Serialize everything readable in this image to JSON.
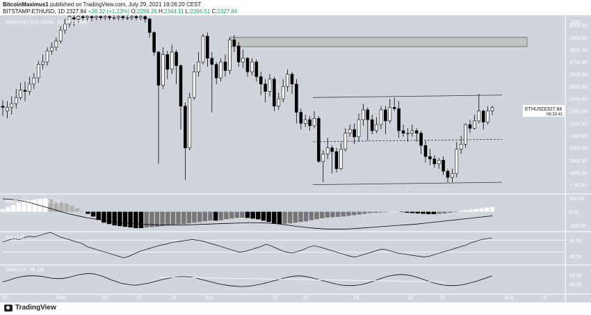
{
  "header": {
    "author": "BitcoinMaximus1",
    "published_text": "published on TradingView.com, July 29, 2021 19:26:20 CEST",
    "symbol": "BITSTAMP:ETHUSD, 1D",
    "price": "2327.84",
    "change": "+28.32 (+1.23%)",
    "o_label": "O:",
    "o_value": "2299.26",
    "h_label": "H:",
    "h_value": "2344.11",
    "l_label": "L:",
    "l_value": "2266.51",
    "c_label": "C:",
    "c_value": "2327.84"
  },
  "main_legend": "Ethereum / U.S. Dollar, 1D, BITSTAMP",
  "macd_legend": "MACD (21, 50, close, 24)",
  "rsi_legend": "RSI (14)",
  "stoch_legend": "Stoch (14, 28, 14)",
  "price_tag": {
    "symbol": "ETHUSD",
    "price": "2327.84",
    "countdown": "06:33:41"
  },
  "footer": {
    "brand": "TradingView"
  },
  "colors": {
    "background": "#d1d4dc",
    "panel_divider": "#ffffff",
    "bull": "#ffffff",
    "bear": "#000000",
    "zone": "#bdbdbd"
  },
  "chart_data": [
    {
      "type": "candlestick",
      "name": "Ethereum / U.S. Dollar, 1D",
      "y_axis_unit": "USD",
      "y_ticks": [
        3000,
        2900,
        2800,
        2700,
        2600,
        2500,
        2400,
        2300,
        2200,
        2100,
        2000,
        1900,
        1800,
        1700
      ],
      "ylim": [
        1630,
        3080
      ],
      "x_ticks": [
        "19",
        "May",
        "10",
        "17",
        "24",
        "Jun",
        "14",
        "21",
        "Jul",
        "12",
        "19",
        "Aug",
        "9"
      ],
      "candles": [
        [
          2340,
          2330,
          2390,
          2260
        ],
        [
          2300,
          2330,
          2380,
          2240
        ],
        [
          2330,
          2360,
          2420,
          2270
        ],
        [
          2360,
          2410,
          2480,
          2320
        ],
        [
          2410,
          2470,
          2530,
          2390
        ],
        [
          2470,
          2460,
          2540,
          2380
        ],
        [
          2460,
          2520,
          2580,
          2430
        ],
        [
          2520,
          2570,
          2610,
          2480
        ],
        [
          2570,
          2680,
          2710,
          2530
        ],
        [
          2680,
          2700,
          2760,
          2640
        ],
        [
          2700,
          2790,
          2820,
          2670
        ],
        [
          2790,
          2820,
          2860,
          2760
        ],
        [
          2820,
          2870,
          2900,
          2790
        ],
        [
          2870,
          2960,
          2990,
          2850
        ],
        [
          2960,
          3010,
          3050,
          2930
        ],
        [
          3010,
          3070,
          3100,
          2980
        ],
        [
          3060,
          3050,
          3080,
          2990
        ],
        [
          3050,
          3070,
          3100,
          3020
        ],
        [
          3070,
          3060,
          3100,
          3030
        ],
        [
          3060,
          3070,
          3100,
          3030
        ],
        [
          3070,
          3060,
          3100,
          3030
        ],
        [
          3060,
          3070,
          3100,
          3040
        ],
        [
          3070,
          3060,
          3100,
          3040
        ],
        [
          3060,
          3070,
          3100,
          3040
        ],
        [
          3070,
          3060,
          3100,
          3040
        ],
        [
          3060,
          3060,
          3100,
          3040
        ],
        [
          3060,
          3070,
          3100,
          3040
        ],
        [
          3070,
          3060,
          3100,
          3040
        ],
        [
          3060,
          3060,
          3100,
          3040
        ],
        [
          3060,
          3070,
          3100,
          3040
        ],
        [
          3070,
          3060,
          3100,
          3040
        ],
        [
          3060,
          3070,
          3100,
          3040
        ],
        [
          3070,
          3050,
          3080,
          3020
        ],
        [
          3050,
          2940,
          3060,
          2900
        ],
        [
          2940,
          2780,
          2950,
          2750
        ],
        [
          2780,
          2510,
          2790,
          1870
        ],
        [
          2510,
          2760,
          2820,
          2480
        ],
        [
          2760,
          2640,
          2790,
          2560
        ],
        [
          2640,
          2780,
          2840,
          2600
        ],
        [
          2780,
          2670,
          2800,
          2520
        ],
        [
          2670,
          2340,
          2680,
          2150
        ],
        [
          2340,
          2000,
          2370,
          1740
        ],
        [
          2000,
          2410,
          2450,
          1980
        ],
        [
          2410,
          2620,
          2680,
          2390
        ],
        [
          2620,
          2700,
          2780,
          2580
        ],
        [
          2700,
          2910,
          2930,
          2680
        ],
        [
          2910,
          2730,
          2940,
          2660
        ],
        [
          2730,
          2680,
          2780,
          2290
        ],
        [
          2680,
          2570,
          2700,
          2520
        ],
        [
          2570,
          2700,
          2730,
          2540
        ],
        [
          2700,
          2630,
          2760,
          2580
        ],
        [
          2630,
          2880,
          2900,
          2600
        ],
        [
          2880,
          2830,
          2920,
          2780
        ],
        [
          2830,
          2700,
          2860,
          2660
        ],
        [
          2700,
          2730,
          2800,
          2650
        ],
        [
          2730,
          2620,
          2740,
          2580
        ],
        [
          2620,
          2700,
          2730,
          2590
        ],
        [
          2700,
          2580,
          2720,
          2540
        ],
        [
          2580,
          2520,
          2620,
          2430
        ],
        [
          2520,
          2460,
          2560,
          2370
        ],
        [
          2460,
          2560,
          2600,
          2420
        ],
        [
          2560,
          2340,
          2580,
          2300
        ],
        [
          2340,
          2400,
          2450,
          2310
        ],
        [
          2400,
          2500,
          2560,
          2370
        ],
        [
          2500,
          2600,
          2640,
          2460
        ],
        [
          2600,
          2520,
          2620,
          2440
        ],
        [
          2520,
          2290,
          2560,
          2200
        ],
        [
          2290,
          2200,
          2320,
          2150
        ],
        [
          2200,
          2230,
          2270,
          2170
        ],
        [
          2230,
          2180,
          2260,
          2140
        ],
        [
          2180,
          2240,
          2300,
          2160
        ],
        [
          2240,
          1890,
          2260,
          1880
        ],
        [
          1890,
          1950,
          1980,
          1720
        ],
        [
          1950,
          2000,
          2080,
          1910
        ],
        [
          2000,
          1970,
          2020,
          1790
        ],
        [
          1970,
          1830,
          2000,
          1800
        ],
        [
          1830,
          1990,
          2040,
          1820
        ],
        [
          1990,
          2120,
          2160,
          1970
        ],
        [
          2120,
          2150,
          2190,
          2090
        ],
        [
          2150,
          2090,
          2200,
          2030
        ],
        [
          2090,
          2230,
          2280,
          2050
        ],
        [
          2230,
          2310,
          2360,
          2180
        ],
        [
          2310,
          2230,
          2330,
          2060
        ],
        [
          2230,
          2140,
          2270,
          2110
        ],
        [
          2140,
          2190,
          2250,
          2120
        ],
        [
          2190,
          2310,
          2340,
          2150
        ],
        [
          2310,
          2220,
          2340,
          2110
        ],
        [
          2220,
          2330,
          2400,
          2200
        ],
        [
          2330,
          2320,
          2410,
          2300
        ],
        [
          2320,
          2140,
          2380,
          2080
        ],
        [
          2140,
          2120,
          2190,
          2090
        ],
        [
          2120,
          2120,
          2160,
          2050
        ],
        [
          2120,
          2140,
          2190,
          2090
        ],
        [
          2140,
          2120,
          2160,
          2050
        ],
        [
          2120,
          2020,
          2140,
          1950
        ],
        [
          2020,
          1930,
          2060,
          1880
        ],
        [
          1930,
          1910,
          1990,
          1860
        ],
        [
          1910,
          1870,
          1940,
          1840
        ],
        [
          1870,
          1900,
          1920,
          1830
        ],
        [
          1900,
          1810,
          1930,
          1780
        ],
        [
          1810,
          1760,
          1830,
          1720
        ],
        [
          1760,
          1790,
          1830,
          1720
        ],
        [
          1790,
          1990,
          2050,
          1760
        ],
        [
          1990,
          2030,
          2100,
          1950
        ],
        [
          2030,
          2190,
          2200,
          2000
        ],
        [
          2190,
          2160,
          2230,
          2120
        ],
        [
          2160,
          2220,
          2270,
          2150
        ],
        [
          2220,
          2300,
          2440,
          2200
        ],
        [
          2300,
          2210,
          2310,
          2150
        ],
        [
          2210,
          2300,
          2340,
          2190
        ],
        [
          2300,
          2327.84,
          2344.11,
          2266.51
        ]
      ],
      "resistance_zone": [
        2825,
        2900
      ],
      "upper_channel_line": [
        2410,
        2430
      ],
      "lower_channel_line": [
        1700,
        1720
      ],
      "middle_dashed_line": [
        2050,
        2070
      ]
    },
    {
      "type": "histogram",
      "name": "MACD (21, 50, close, 24)",
      "y_ticks": [
        200,
        0,
        -200
      ],
      "ylim": [
        -280,
        240
      ],
      "values": [
        40,
        70,
        100,
        130,
        150,
        165,
        180,
        190,
        195,
        180,
        160,
        140,
        120,
        90,
        50,
        10,
        -30,
        -70,
        -120,
        -160,
        -180,
        -200,
        -210,
        -220,
        -230,
        -240,
        -240,
        -230,
        -225,
        -220,
        -210,
        -200,
        -190,
        -185,
        -180,
        -170,
        -160,
        -150,
        -140,
        -130,
        -130,
        -125,
        -110,
        -100,
        -90,
        -85,
        -90,
        -100,
        -110,
        -130,
        -150,
        -170,
        -180,
        -175,
        -170,
        -160,
        -150,
        -140,
        -125,
        -110,
        -95,
        -85,
        -80,
        -75,
        -70,
        -60,
        -50,
        -40,
        -30,
        -20,
        -15,
        -10,
        -5,
        0,
        5,
        -5,
        -15,
        -20,
        -25,
        -30,
        -35,
        -35,
        -30,
        -25,
        -15,
        -5,
        10,
        20,
        30,
        40,
        50,
        60,
        70
      ],
      "signal": [
        190,
        180,
        160,
        130,
        90,
        50,
        10,
        -30,
        -60,
        -90,
        -110,
        -130,
        -150,
        -165,
        -175,
        -185,
        -190,
        -195,
        -195,
        -195,
        -190,
        -185,
        -180,
        -175,
        -170,
        -165,
        -160,
        -160,
        -165,
        -175,
        -190,
        -210,
        -225,
        -240,
        -250,
        -255,
        -255,
        -250,
        -240,
        -230,
        -220,
        -210,
        -200,
        -190,
        -180,
        -165,
        -150,
        -135,
        -120,
        -105,
        -90,
        -75,
        -60
      ]
    },
    {
      "type": "line",
      "name": "RSI (14)",
      "y_ticks": [
        60,
        40
      ],
      "ylim": [
        30,
        70
      ],
      "levels": [
        60,
        45
      ],
      "values": [
        58,
        60,
        62,
        61,
        63,
        65,
        64,
        66,
        68,
        70,
        67,
        64,
        62,
        60,
        58,
        56,
        52,
        50,
        48,
        46,
        44,
        42,
        40,
        38,
        40,
        43,
        46,
        48,
        50,
        52,
        54,
        55,
        57,
        58,
        59,
        60,
        61,
        60,
        59,
        57,
        55,
        53,
        51,
        49,
        47,
        45,
        46,
        48,
        50,
        52,
        55,
        53,
        50,
        47,
        45,
        44,
        46,
        48,
        51,
        53,
        52,
        50,
        48,
        46,
        44,
        42,
        40,
        39,
        41,
        43,
        45,
        47,
        49,
        48,
        46,
        44,
        43,
        42,
        41,
        40,
        39,
        40,
        42,
        44,
        46,
        48,
        50,
        52,
        54,
        57,
        59,
        61,
        62,
        63
      ]
    },
    {
      "type": "line",
      "name": "Stoch (14, 28, 14)",
      "y_ticks": [
        60,
        40
      ],
      "ylim": [
        20,
        80
      ],
      "values": [
        45,
        48,
        52,
        55,
        57,
        58,
        58,
        57,
        55,
        53,
        52,
        52,
        54,
        57,
        60,
        62,
        63,
        62,
        59,
        55,
        50,
        46,
        42,
        40,
        38,
        38,
        40,
        42,
        45,
        48,
        51,
        53,
        55,
        56,
        56,
        55,
        53,
        50,
        47,
        44,
        41,
        39,
        37,
        36,
        35,
        35,
        36,
        38,
        40,
        43,
        46,
        49,
        52,
        55,
        57,
        58,
        57,
        55,
        52,
        49,
        46,
        43,
        40,
        38,
        37,
        37,
        38,
        40,
        43,
        47,
        51,
        55,
        58,
        60,
        61,
        60,
        58,
        55,
        51,
        47,
        43,
        40,
        38,
        37,
        37,
        38,
        40,
        43,
        46,
        50,
        54,
        58
      ]
    }
  ]
}
